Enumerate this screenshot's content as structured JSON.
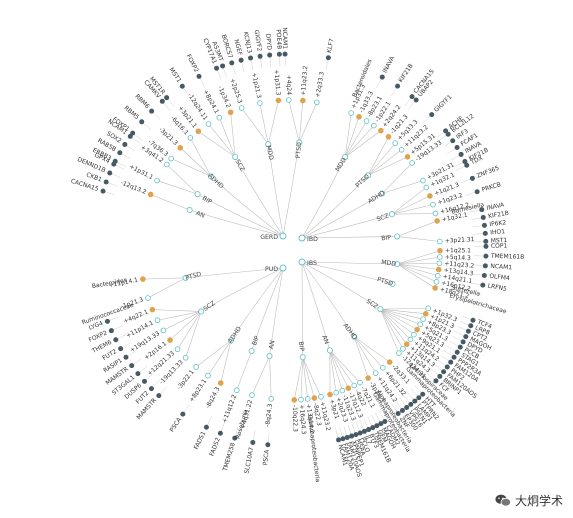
{
  "diagram": {
    "center_hubs": [
      {
        "label": "GERD",
        "side": "left"
      },
      {
        "label": "PUD",
        "side": "left"
      },
      {
        "label": "IBD",
        "side": "right"
      },
      {
        "label": "IBS",
        "side": "right"
      }
    ],
    "sectors": [
      {
        "hub": "GERD",
        "groups": [
          {
            "label": "AN",
            "loci": [
              "-12q13.2"
            ],
            "genes": [
              "CACNA15",
              "CKB1",
              "DENND1B",
              "GPX4"
            ]
          },
          {
            "label": "BIP",
            "loci": [
              "+1p31.1",
              "+3q41.2"
            ],
            "genes": [
              "ERBB3",
              "RAB5B",
              "SOX2",
              "NCAM1"
            ]
          },
          {
            "label": "ADHD",
            "loci": [
              "-7q36.3",
              "-3p21.3",
              "-6q16.1"
            ],
            "genes": [
              "FOXP1",
              "RBM5",
              "RBM6",
              "CAMKV"
            ]
          },
          {
            "label": "SCZ",
            "loci": [
              "+3p21.1",
              "-12q24.11",
              "+8p24.1",
              "-1p34.2"
            ],
            "genes": [
              "MST1R",
              "MST1",
              "FOXP2",
              "CYP17A1"
            ]
          },
          {
            "label": "MDD",
            "loci": [
              "+2p25.3",
              "+1p21.3",
              "+1p31.3"
            ],
            "genes": [
              "AS3MT",
              "BORCS7",
              "NGEF",
              "KCNJ13",
              "GIGYF2",
              "DPYD",
              "PDE4B"
            ]
          },
          {
            "label": "PTSD",
            "loci": [
              "+4q24",
              "+11q23.2",
              "+2q33.3"
            ],
            "genes": [
              "NCAM1",
              "KLF7"
            ]
          }
        ]
      },
      {
        "hub": "PUD",
        "groups": [
          {
            "label": "AN",
            "loci": [
              "-8q24.3",
              "+4q31.22"
            ],
            "genes": [
              "PSCA",
              "SLC10A7",
              "Roseburia"
            ]
          },
          {
            "label": "BIP",
            "loci": [
              "+11q12.2"
            ],
            "genes": [
              "TMEM258",
              "FADS2",
              "FADS1"
            ]
          },
          {
            "label": "ADHD",
            "loci": [
              "-8q24.3",
              "+8p23.1",
              "-3p22.1"
            ],
            "genes": [
              "PSCA"
            ]
          },
          {
            "label": "SCZ",
            "loci": [
              "-19q13.33",
              "+12q21.33",
              "+2p16.1",
              "+19q13.33",
              "+11p14.1",
              "+4q22.1"
            ],
            "genes": [
              "MAMSTR",
              "FUT2",
              "DUSP6",
              "ST3GAL1",
              "MAMSTR",
              "RASIP1",
              "FUT2",
              "THEM6",
              "FOXP2",
              "LYG4"
            ]
          },
          {
            "label": "PTSD",
            "loci": [
              "-1p21.3",
              "+11p14.1"
            ],
            "genes": [
              "Ruminococcaceae",
              "Bacteroides"
            ]
          }
        ]
      },
      {
        "hub": "IBD",
        "groups": [
          {
            "label": "MDD",
            "loci": [
              "+1p31.3",
              "-1q33.3",
              "-8p23.1",
              "-1p22.1",
              "+2q24.2"
            ],
            "genes": [
              "Bacteroidales",
              "INAVA",
              "KIF21B",
              "CACNA1S"
            ]
          },
          {
            "label": "PTSD",
            "loci": [
              "-1q21.3",
              "+5q33.3",
              "+11q23.2",
              "+5p15.31"
            ],
            "genes": [
              "UBAP2",
              "GIGYF1",
              "ACHE"
            ]
          },
          {
            "label": "ADHD",
            "loci": [
              "-19q13.33",
              "+3p21.31"
            ],
            "genes": [
              "BCL2L12",
              "IRF3",
              "FCAF1",
              "INAVA",
              "KIF21B"
            ]
          },
          {
            "label": "SCZ",
            "loci": [
              "+1q32.1",
              "+1q21.3",
              "+1q23.2",
              "+16q12.2"
            ],
            "genes": [
              "TDX",
              "ZNF365",
              "PRKCB",
              "Barnesiella"
            ]
          },
          {
            "label": "BIP",
            "loci": [
              "+1q32.1",
              "+3p21.31"
            ],
            "genes": [
              "INAVA",
              "KIF21B",
              "IP6K2",
              "IHO1",
              "MST1"
            ]
          }
        ]
      },
      {
        "hub": "IBS",
        "groups": [
          {
            "label": "MDD",
            "loci": [
              "+1q25.1",
              "+5q14.3",
              "+11q23.2",
              "+13q14.3",
              "+14q21.1",
              "+16p12.2",
              "+18q21.2"
            ],
            "genes": [
              "COP1",
              "TMEM161B",
              "NCAM1",
              "OLFM4",
              "LRFN5",
              "Sutterella",
              "Erysipelotrichaceae"
            ]
          },
          {
            "label": "PTSD",
            "loci": [],
            "genes": []
          },
          {
            "label": "SCZ",
            "loci": [
              "+1p32.3",
              "+1p21.3",
              "+8p23.3",
              "+5q21.3",
              "+5q23.3",
              "+9q21.1",
              "+11q24.2",
              "+13q14.3",
              "+11q24.3",
              "-12q24.31"
            ],
            "genes": [
              "TCF4",
              "LRP8",
              "CPT2",
              "MAGOH",
              "DPYD",
              "PCCB",
              "STAG1",
              "PPP2R3A",
              "FAM120A",
              "PHF2",
              "FAM120AOS",
              "BRINP1",
              "FCF",
              "Lachnospiraceae",
              "Gammaproteobacteria"
            ]
          },
          {
            "label": "ADHD",
            "loci": [
              "-2q33.1",
              "+6p21.32",
              "+11q24.2",
              "-3p24.3"
            ],
            "genes": [
              "HTT",
              "PTPRN2",
              "LAMP1",
              "PSEN1",
              "VPS16",
              "EP300",
              "ZNF",
              "Alphaproteobacteria",
              "Gammaproteobacteria"
            ]
          },
          {
            "label": "AN",
            "loci": [
              "-7q21.1",
              "-4q22",
              "-17q12.3",
              "-11q23.3",
              "+2q23.3",
              "+3p21"
            ],
            "genes": [
              "CADM2",
              "MAGOH",
              "GEM",
              "TMEM161B",
              "BTF3",
              "IL7",
              "PCLO",
              "MSRA",
              "XPNPEP1",
              "FAM120AOS",
              "FAM120A",
              "NCAM1"
            ]
          },
          {
            "label": "BIP",
            "loci": [
              "+11q23.2",
              "-8q22.3",
              "+13q14.2",
              "+16q24.3",
              "-10q22.3"
            ],
            "genes": [
              "Gammaproteobacteria"
            ]
          }
        ]
      }
    ],
    "legend_colors": {
      "nonsynonymous": "#455a64",
      "lead_snp": "#e0a24c",
      "locus": "#5fbfc9",
      "link": "#b9b9b9"
    }
  },
  "watermark": {
    "text": "大炯学术",
    "icon": "wechat-icon"
  }
}
